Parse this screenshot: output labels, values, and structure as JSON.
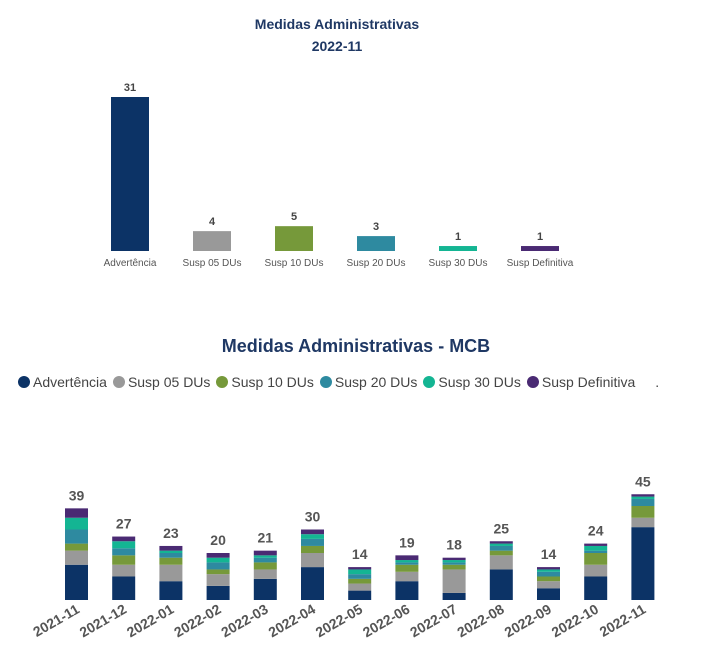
{
  "colors": {
    "title": "#1f3864",
    "Advertência": "#0c3366",
    "Susp 05 DUs": "#999999",
    "Susp 10 DUs": "#76993a",
    "Susp 20 DUs": "#2e8aa0",
    "Susp 30 DUs": "#14b593",
    "Susp Definitiva": "#4a2a73"
  },
  "legend": {
    "items": [
      "Advertência",
      "Susp 05 DUs",
      "Susp 10 DUs",
      "Susp 20 DUs",
      "Susp 30 DUs",
      "Susp Definitiva"
    ],
    "more": "."
  },
  "chart_data": [
    {
      "type": "bar",
      "title": "Medidas Administrativas",
      "subtitle": "2022-11",
      "categories": [
        "Advertência",
        "Susp 05 DUs",
        "Susp 10 DUs",
        "Susp 20 DUs",
        "Susp 30 DUs",
        "Susp Definitiva"
      ],
      "values": [
        31,
        4,
        5,
        3,
        1,
        1
      ],
      "ylim": [
        0,
        31
      ],
      "grid": false
    },
    {
      "type": "bar",
      "stacked": true,
      "title": "Medidas Administrativas - MCB",
      "legend_position": "top-left",
      "categories": [
        "2021-11",
        "2021-12",
        "2022-01",
        "2022-02",
        "2022-03",
        "2022-04",
        "2022-05",
        "2022-06",
        "2022-07",
        "2022-08",
        "2022-09",
        "2022-10",
        "2022-11"
      ],
      "totals": [
        39,
        27,
        23,
        20,
        21,
        30,
        14,
        19,
        18,
        25,
        14,
        24,
        45
      ],
      "series": [
        {
          "name": "Advertência",
          "values": [
            15,
            10,
            8,
            6,
            9,
            14,
            4,
            8,
            3,
            13,
            5,
            10,
            31
          ]
        },
        {
          "name": "Susp 05 DUs",
          "values": [
            6,
            5,
            7,
            5,
            4,
            6,
            3,
            4,
            10,
            6,
            3,
            5,
            4
          ]
        },
        {
          "name": "Susp 10 DUs",
          "values": [
            3,
            4,
            3,
            2,
            3,
            3,
            2,
            3,
            2,
            2,
            2,
            5,
            5
          ]
        },
        {
          "name": "Susp 20 DUs",
          "values": [
            6,
            3,
            2,
            3,
            2,
            3,
            2,
            1,
            1,
            2,
            2,
            1,
            3
          ]
        },
        {
          "name": "Susp 30 DUs",
          "values": [
            5,
            3,
            1,
            2,
            1,
            2,
            2,
            1,
            1,
            1,
            1,
            2,
            1
          ]
        },
        {
          "name": "Susp Definitiva",
          "values": [
            4,
            2,
            2,
            2,
            2,
            2,
            1,
            2,
            1,
            1,
            1,
            1,
            1
          ]
        }
      ]
    }
  ]
}
